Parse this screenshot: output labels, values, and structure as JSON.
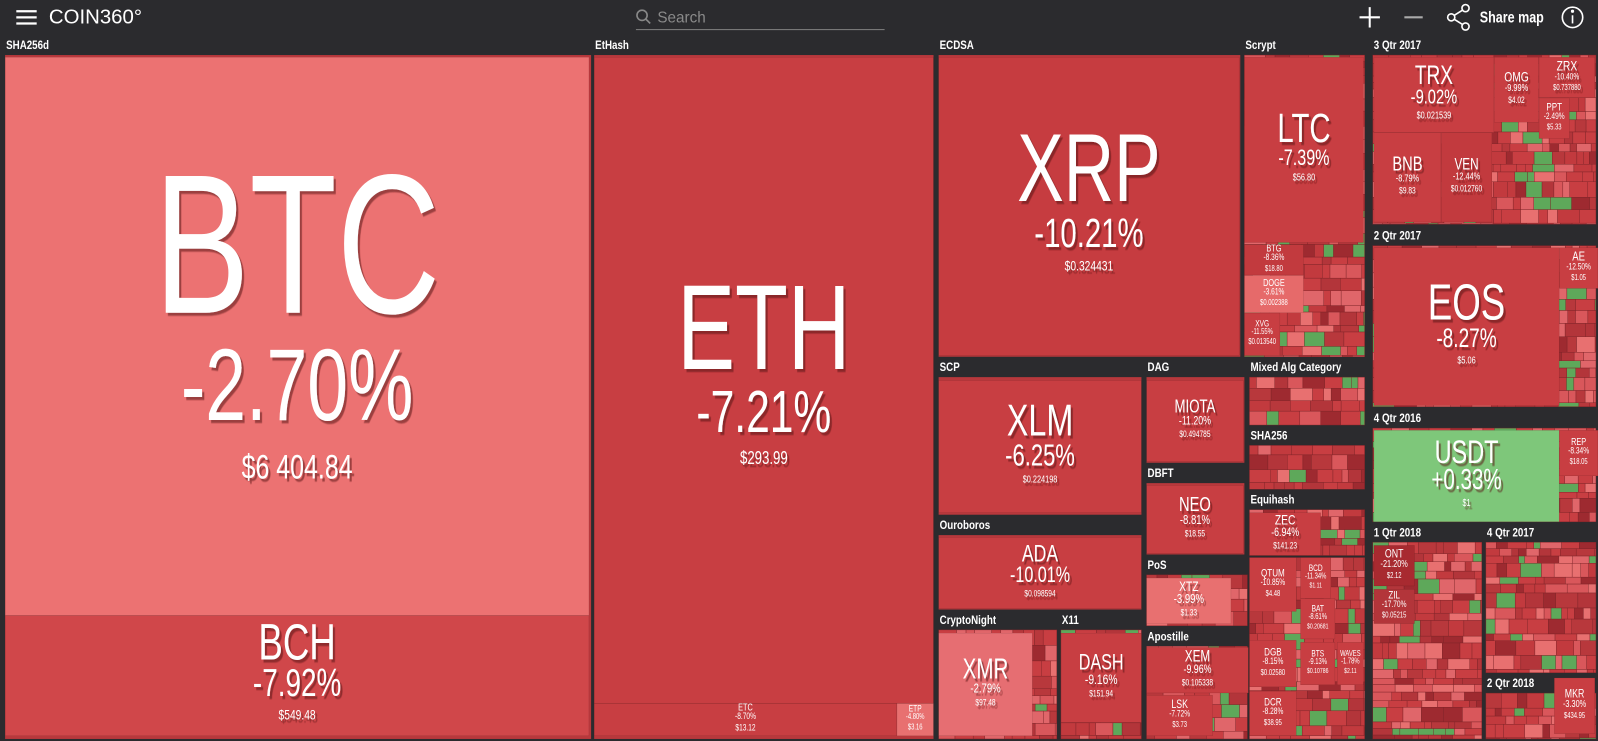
{
  "header": {
    "logo": "COIN360°",
    "search_placeholder": "Search",
    "share": "Share map"
  },
  "groups": [
    {
      "label": "SHA256d",
      "tiles": [
        {
          "symbol": "BTC",
          "change": "-2.70%",
          "price": "$6 404.84"
        },
        {
          "symbol": "BCH",
          "change": "-7.92%",
          "price": "$549.48"
        }
      ]
    },
    {
      "label": "EtHash",
      "tiles": [
        {
          "symbol": "ETH",
          "change": "-7.21%",
          "price": "$293.99"
        },
        {
          "symbol": "ETC",
          "change": "-8.70%",
          "price": "$13.12"
        },
        {
          "symbol": "ETP",
          "change": "-4.80%",
          "price": "$3.16"
        }
      ]
    },
    {
      "label": "ECDSA",
      "tiles": [
        {
          "symbol": "XRP",
          "change": "-10.21%",
          "price": "$0.324431"
        }
      ]
    },
    {
      "label": "Scrypt",
      "tiles": [
        {
          "symbol": "LTC",
          "change": "-7.39%",
          "price": "$56.80"
        },
        {
          "symbol": "BTG",
          "change": "-8.36%",
          "price": "$18.80"
        },
        {
          "symbol": "DOGE",
          "change": "-3.61%",
          "price": "$0.002388"
        },
        {
          "symbol": "XVG",
          "change": "-11.55%",
          "price": "$0.013540"
        }
      ]
    },
    {
      "label": "3 Qtr 2017",
      "tiles": [
        {
          "symbol": "TRX",
          "change": "-9.02%",
          "price": "$0.021539"
        },
        {
          "symbol": "OMG",
          "change": "-9.99%",
          "price": "$4.02"
        },
        {
          "symbol": "ZRX",
          "change": "-10.40%",
          "price": "$0.737880"
        },
        {
          "symbol": "BNB",
          "change": "-8.79%",
          "price": "$9.83"
        },
        {
          "symbol": "VEN",
          "change": "-12.44%",
          "price": "$0.012760"
        },
        {
          "symbol": "PPT",
          "change": "-2.49%",
          "price": "$5.33"
        }
      ]
    },
    {
      "label": "2 Qtr 2017",
      "tiles": [
        {
          "symbol": "EOS",
          "change": "-8.27%",
          "price": "$5.06"
        },
        {
          "symbol": "AE",
          "change": "-12.50%",
          "price": "$1.05"
        }
      ]
    },
    {
      "label": "4 Qtr 2016",
      "tiles": [
        {
          "symbol": "USDT",
          "change": "+0.33%",
          "price": "$1"
        },
        {
          "symbol": "REP",
          "change": "-8.34%",
          "price": "$18.05"
        }
      ]
    },
    {
      "label": "SCP",
      "tiles": [
        {
          "symbol": "XLM",
          "change": "-6.25%",
          "price": "$0.224198"
        }
      ]
    },
    {
      "label": "DAG",
      "tiles": [
        {
          "symbol": "MIOTA",
          "change": "-11.20%",
          "price": "$0.494785"
        }
      ]
    },
    {
      "label": "DBFT",
      "tiles": [
        {
          "symbol": "NEO",
          "change": "-8.81%",
          "price": "$18.55"
        }
      ]
    },
    {
      "label": "Ouroboros",
      "tiles": [
        {
          "symbol": "ADA",
          "change": "-10.01%",
          "price": "$0.098594"
        }
      ]
    },
    {
      "label": "PoS",
      "tiles": [
        {
          "symbol": "XTZ",
          "change": "-3.99%",
          "price": "$1.33"
        }
      ]
    },
    {
      "label": "CryptoNight",
      "tiles": [
        {
          "symbol": "XMR",
          "change": "-2.79%",
          "price": "$97.48"
        }
      ]
    },
    {
      "label": "X11",
      "tiles": [
        {
          "symbol": "DASH",
          "change": "-9.16%",
          "price": "$151.94"
        }
      ]
    },
    {
      "label": "Apostille",
      "tiles": [
        {
          "symbol": "XEM",
          "change": "-9.96%",
          "price": "$0.105338"
        },
        {
          "symbol": "LSK",
          "change": "-7.72%",
          "price": "$3.73"
        }
      ]
    },
    {
      "label": "Mixed Alg Category",
      "tiles": []
    },
    {
      "label": "SHA256",
      "tiles": []
    },
    {
      "label": "Equihash",
      "tiles": [
        {
          "symbol": "ZEC",
          "change": "-6.94%",
          "price": "$141.23"
        }
      ]
    },
    {
      "label": "1 Qtr 2018",
      "tiles": [
        {
          "symbol": "ONT",
          "change": "-21.20%",
          "price": "$2.12"
        },
        {
          "symbol": "ZIL",
          "change": "-17.70%",
          "price": "$0.05215"
        }
      ]
    },
    {
      "label": "4 Qtr 2017",
      "tiles": []
    },
    {
      "label": "2 Qtr 2018",
      "tiles": [
        {
          "symbol": "MKR",
          "change": "-3.30%",
          "price": "$434.95"
        }
      ]
    }
  ],
  "loose_tiles": [
    {
      "symbol": "QTUM",
      "change": "-10.85%",
      "price": "$4.48"
    },
    {
      "symbol": "BCD",
      "change": "-11.34%",
      "price": "$1.11"
    },
    {
      "symbol": "BAT",
      "change": "-8.61%",
      "price": "$0.20681"
    },
    {
      "symbol": "DGB",
      "change": "-8.15%",
      "price": "$0.02580"
    },
    {
      "symbol": "DCR",
      "change": "-8.28%",
      "price": "$38.95"
    },
    {
      "symbol": "BTS",
      "change": "-9.13%",
      "price": "$0.10786"
    },
    {
      "symbol": "WAVES",
      "change": "-1.78%",
      "price": "$2.11"
    }
  ]
}
